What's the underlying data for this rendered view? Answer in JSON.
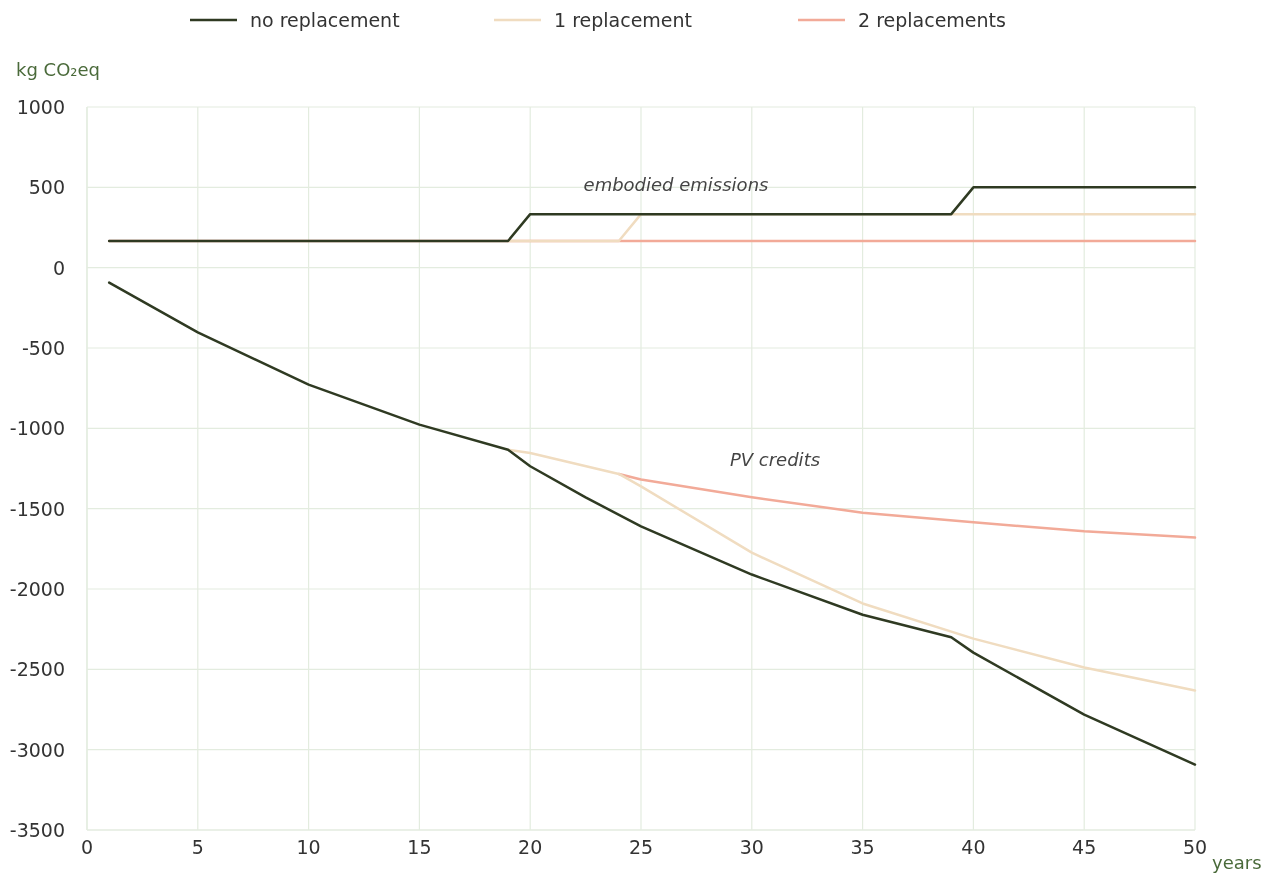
{
  "chart_data": {
    "type": "line",
    "xlabel": "years",
    "ylabel": "kg CO₂eq",
    "xlim": [
      0,
      50
    ],
    "xticks": [
      0,
      5,
      10,
      15,
      20,
      25,
      30,
      35,
      40,
      45,
      50
    ],
    "ylim": [
      -3500,
      1000
    ],
    "yticks": [
      -3500,
      -3000,
      -2500,
      -2000,
      -1500,
      -1000,
      -500,
      0,
      500,
      1000
    ],
    "grid": true,
    "legend": "top",
    "line_style": "solid",
    "marker": "none",
    "annotations": [
      "embodied emissions",
      "PV credits"
    ],
    "series": [
      {
        "color": "#f2aa98",
        "x": [
          1,
          50
        ],
        "values": [
          166,
          166
        ]
      },
      {
        "color": "#f0dcc0",
        "x": [
          19,
          24,
          25,
          50
        ],
        "values": [
          166,
          166,
          333,
          333
        ]
      },
      {
        "color": "#2f3a22",
        "x": [
          1,
          19,
          20,
          39,
          40,
          50
        ],
        "values": [
          166,
          166,
          333,
          333,
          500,
          500
        ]
      },
      {
        "name": "2 replacements",
        "color": "#f2aa98",
        "x": [
          24,
          25,
          30,
          35,
          40,
          45,
          50
        ],
        "values": [
          -1284,
          -1319,
          -1429,
          -1525,
          -1585,
          -1641,
          -1680
        ]
      },
      {
        "name": "1 replacement",
        "color": "#f0dcc0",
        "x": [
          19,
          20,
          24,
          25,
          30,
          35,
          40,
          45,
          50
        ],
        "values": [
          -1133,
          -1153,
          -1284,
          -1361,
          -1774,
          -2090,
          -2309,
          -2489,
          -2632
        ]
      },
      {
        "name": "no replacement",
        "color": "#2f3a22",
        "x": [
          1,
          5,
          10,
          15,
          19,
          20,
          22.5,
          25,
          30,
          35,
          39,
          40,
          45,
          50
        ],
        "values": [
          -93,
          -403,
          -728,
          -977,
          -1133,
          -1236,
          -1430,
          -1610,
          -1910,
          -2160,
          -2300,
          -2396,
          -2782,
          -3093
        ]
      }
    ]
  }
}
